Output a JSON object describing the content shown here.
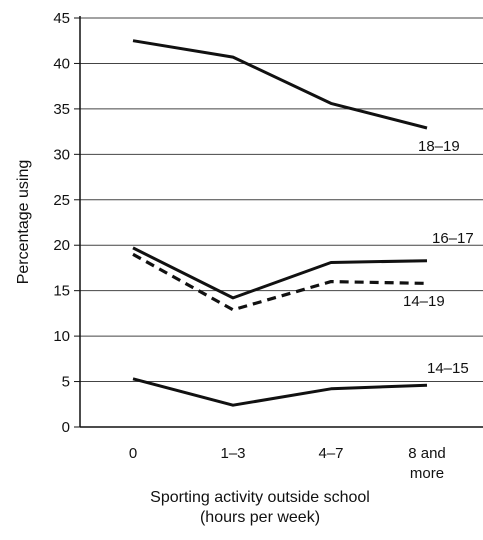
{
  "chart_data": {
    "type": "line",
    "categories": [
      "0",
      "1–3",
      "4–7",
      "8 and more"
    ],
    "category_display": [
      [
        "0"
      ],
      [
        "1–3"
      ],
      [
        "4–7"
      ],
      [
        "8 and",
        "more"
      ]
    ],
    "series": [
      {
        "name": "18–19",
        "values": [
          42.5,
          40.7,
          35.6,
          32.9
        ],
        "style": "solid"
      },
      {
        "name": "16–17",
        "values": [
          19.7,
          14.2,
          18.1,
          18.3
        ],
        "style": "solid"
      },
      {
        "name": "14–19",
        "values": [
          19.0,
          12.9,
          16.0,
          15.8
        ],
        "style": "dashed"
      },
      {
        "name": "14–15",
        "values": [
          5.3,
          2.4,
          4.2,
          4.6
        ],
        "style": "solid"
      }
    ],
    "xlabel": [
      "Sporting activity outside school",
      "(hours per week)"
    ],
    "ylabel": "Percentage using",
    "ylim": [
      0,
      45
    ],
    "yticks": [
      0,
      5,
      10,
      15,
      20,
      25,
      30,
      35,
      40,
      45
    ],
    "grid": "horizontal",
    "line_color": "#111111",
    "grid_color": "#444444"
  }
}
